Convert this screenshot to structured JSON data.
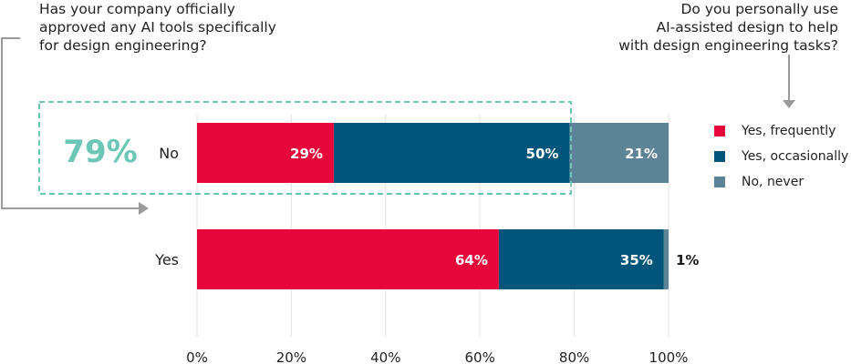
{
  "questions": {
    "left": "Has your company officially\napproved any AI tools specifically\nfor design engineering?",
    "right": "Do you personally use\nAI-assisted design to help\nwith design engineering tasks?"
  },
  "highlight": {
    "value": "79%",
    "color": "#6cc8b4"
  },
  "colors": {
    "yes_frequently": "#e8073a",
    "yes_occasionally": "#00557a",
    "no_never": "#5c8496"
  },
  "chart_data": {
    "type": "bar",
    "orientation": "horizontal",
    "stacked": true,
    "categories": [
      "No",
      "Yes"
    ],
    "series": [
      {
        "name": "Yes, frequently",
        "values": [
          29,
          64
        ],
        "labels": [
          "29%",
          "64%"
        ]
      },
      {
        "name": "Yes, occasionally",
        "values": [
          50,
          35
        ],
        "labels": [
          "50%",
          "35%"
        ]
      },
      {
        "name": "No, never",
        "values": [
          21,
          1
        ],
        "labels": [
          "21%",
          "1%"
        ]
      }
    ],
    "xlim": [
      0,
      100
    ],
    "xticks": [
      "0%",
      "20%",
      "40%",
      "60%",
      "80%",
      "100%"
    ],
    "grid": "vertical",
    "legend_position": "right"
  }
}
